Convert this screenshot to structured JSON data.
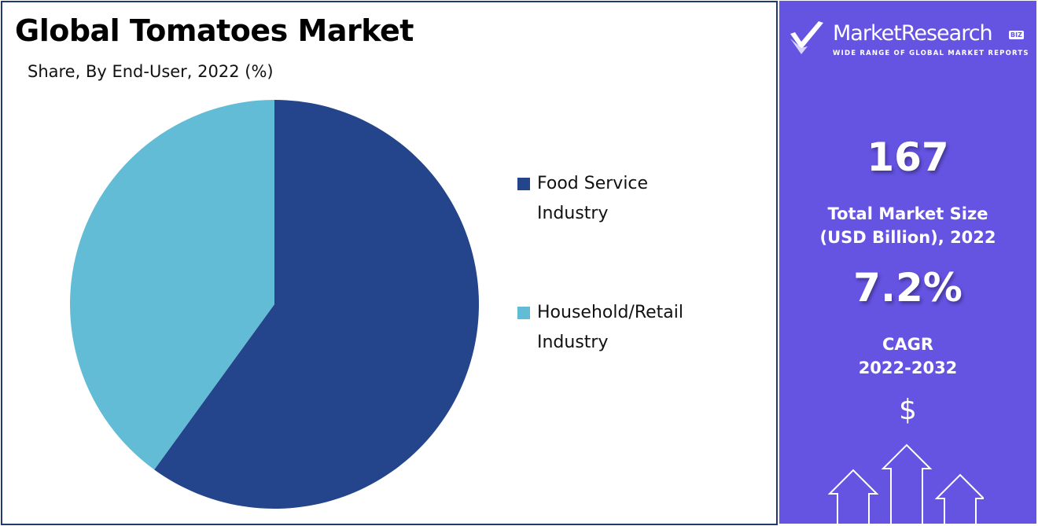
{
  "chart_data": {
    "type": "pie",
    "title": "Global Tomatoes Market",
    "subtitle": "Share, By End-User, 2022 (%)",
    "categories": [
      "Food Service Industry",
      "Household/Retail Industry"
    ],
    "values": [
      60,
      40
    ],
    "colors": [
      "#24458b",
      "#63bcd5"
    ],
    "legend_position": "right"
  },
  "legend": {
    "items": [
      {
        "label": "Food Service Industry",
        "color": "#24458b"
      },
      {
        "label": "Household/Retail Industry",
        "color": "#63bcd5"
      }
    ]
  },
  "side_panel": {
    "background": "#6553e2",
    "logo": {
      "name": "MarketResearch",
      "badge": "BIZ",
      "tagline": "WIDE RANGE OF GLOBAL MARKET REPORTS",
      "icon": "checkmark-logo-icon"
    },
    "market_size": {
      "value": "167",
      "label_line1": "Total Market Size",
      "label_line2": "(USD Billion), 2022"
    },
    "cagr": {
      "value": "7.2%",
      "label_line1": "CAGR",
      "label_line2": "2022-2032"
    },
    "currency_symbol": "$",
    "growth_icon": "growth-arrows-icon"
  }
}
